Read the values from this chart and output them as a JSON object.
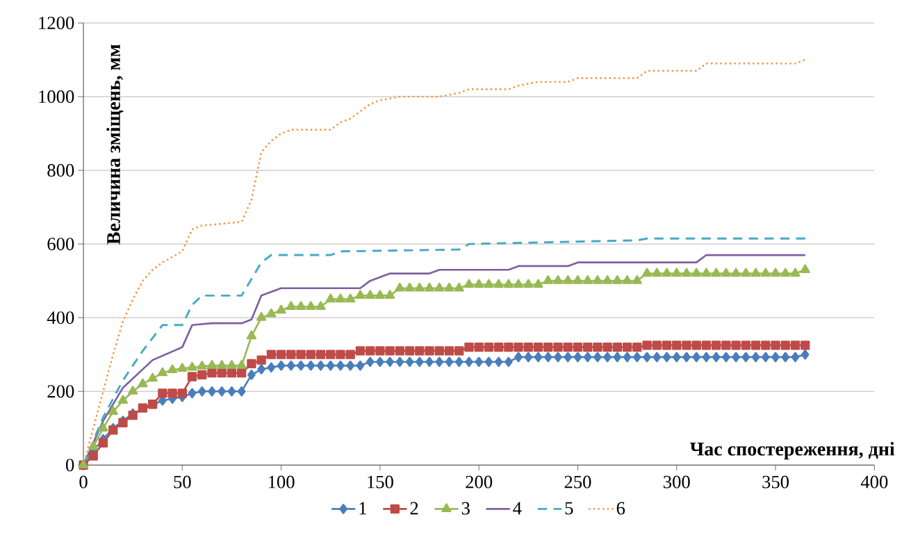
{
  "chart_data": {
    "type": "line",
    "xlabel": "Час спостереження, дні",
    "ylabel": "Величина зміщень, мм",
    "xlim": [
      0,
      400
    ],
    "ylim": [
      0,
      1200
    ],
    "xticks": [
      0,
      50,
      100,
      150,
      200,
      250,
      300,
      350,
      400
    ],
    "yticks": [
      0,
      200,
      400,
      600,
      800,
      1000,
      1200
    ],
    "grid": "y",
    "legend": "bottom",
    "x": [
      0,
      5,
      10,
      15,
      20,
      25,
      30,
      35,
      40,
      45,
      50,
      55,
      60,
      65,
      70,
      75,
      80,
      85,
      90,
      95,
      100,
      105,
      110,
      115,
      120,
      125,
      130,
      135,
      140,
      145,
      150,
      155,
      160,
      165,
      170,
      175,
      180,
      185,
      190,
      195,
      200,
      205,
      210,
      215,
      220,
      225,
      230,
      235,
      240,
      245,
      250,
      255,
      260,
      265,
      270,
      275,
      280,
      285,
      290,
      295,
      300,
      305,
      310,
      315,
      320,
      325,
      330,
      335,
      340,
      345,
      350,
      355,
      360,
      365
    ],
    "series": [
      {
        "name": "1",
        "color": "#4a7ebb",
        "marker": "diamond",
        "line_style": "solid",
        "values": [
          0,
          40,
          70,
          100,
          120,
          140,
          null,
          null,
          175,
          180,
          185,
          195,
          200,
          200,
          200,
          200,
          200,
          245,
          260,
          265,
          270,
          270,
          270,
          270,
          270,
          270,
          270,
          270,
          270,
          280,
          280,
          280,
          280,
          280,
          280,
          280,
          280,
          280,
          280,
          280,
          280,
          280,
          280,
          280,
          293,
          293,
          293,
          293,
          293,
          293,
          293,
          293,
          293,
          293,
          293,
          293,
          293,
          293,
          293,
          293,
          293,
          293,
          293,
          293,
          293,
          293,
          293,
          293,
          293,
          293,
          293,
          293,
          293,
          300
        ]
      },
      {
        "name": "2",
        "color": "#be4b48",
        "marker": "square",
        "line_style": "solid",
        "values": [
          0,
          25,
          60,
          95,
          115,
          135,
          155,
          165,
          195,
          195,
          195,
          240,
          245,
          250,
          250,
          250,
          250,
          275,
          285,
          300,
          300,
          300,
          300,
          300,
          300,
          300,
          300,
          300,
          310,
          310,
          310,
          310,
          310,
          310,
          310,
          310,
          310,
          310,
          310,
          320,
          320,
          320,
          320,
          320,
          320,
          320,
          320,
          320,
          320,
          320,
          320,
          320,
          320,
          320,
          320,
          320,
          320,
          325,
          325,
          325,
          325,
          325,
          325,
          325,
          325,
          325,
          325,
          325,
          325,
          325,
          325,
          325,
          325,
          325
        ]
      },
      {
        "name": "3",
        "color": "#98b954",
        "marker": "triangle",
        "line_style": "solid",
        "values": [
          0,
          50,
          100,
          145,
          175,
          200,
          220,
          235,
          250,
          258,
          262,
          265,
          268,
          270,
          270,
          270,
          270,
          350,
          400,
          410,
          420,
          430,
          430,
          430,
          430,
          450,
          450,
          450,
          460,
          460,
          460,
          460,
          480,
          480,
          480,
          480,
          480,
          480,
          480,
          490,
          490,
          490,
          490,
          490,
          490,
          490,
          490,
          500,
          500,
          500,
          500,
          500,
          500,
          500,
          500,
          500,
          500,
          520,
          520,
          520,
          520,
          520,
          520,
          520,
          520,
          520,
          520,
          520,
          520,
          520,
          520,
          520,
          520,
          530
        ]
      },
      {
        "name": "4",
        "color": "#7d60a0",
        "marker": "none",
        "line_style": "solid",
        "x": [
          0,
          10,
          20,
          35,
          50,
          55,
          65,
          80,
          85,
          90,
          100,
          140,
          145,
          155,
          175,
          180,
          215,
          220,
          245,
          250,
          310,
          315,
          365
        ],
        "values": [
          0,
          120,
          210,
          285,
          320,
          380,
          385,
          385,
          395,
          460,
          480,
          480,
          500,
          520,
          520,
          530,
          530,
          540,
          540,
          550,
          550,
          570,
          570
        ]
      },
      {
        "name": "5",
        "color": "#46aac5",
        "marker": "none",
        "line_style": "dashed",
        "x": [
          0,
          10,
          20,
          30,
          40,
          50,
          55,
          60,
          80,
          90,
          95,
          125,
          130,
          190,
          195,
          280,
          285,
          365
        ],
        "values": [
          0,
          130,
          230,
          310,
          380,
          380,
          435,
          460,
          460,
          550,
          570,
          570,
          580,
          585,
          600,
          610,
          615,
          615
        ]
      },
      {
        "name": "6",
        "color": "#f79646",
        "marker": "none",
        "line_style": "dotted",
        "x": [
          0,
          5,
          10,
          15,
          20,
          25,
          30,
          35,
          40,
          50,
          55,
          60,
          80,
          85,
          90,
          95,
          100,
          105,
          125,
          130,
          135,
          145,
          150,
          160,
          180,
          190,
          195,
          215,
          220,
          230,
          245,
          250,
          280,
          285,
          310,
          315,
          360,
          365
        ],
        "values": [
          0,
          100,
          200,
          300,
          390,
          450,
          500,
          530,
          550,
          580,
          640,
          650,
          660,
          720,
          850,
          880,
          900,
          910,
          910,
          930,
          940,
          980,
          990,
          1000,
          1000,
          1010,
          1020,
          1020,
          1030,
          1040,
          1040,
          1050,
          1050,
          1070,
          1070,
          1090,
          1090,
          1100
        ]
      }
    ]
  }
}
